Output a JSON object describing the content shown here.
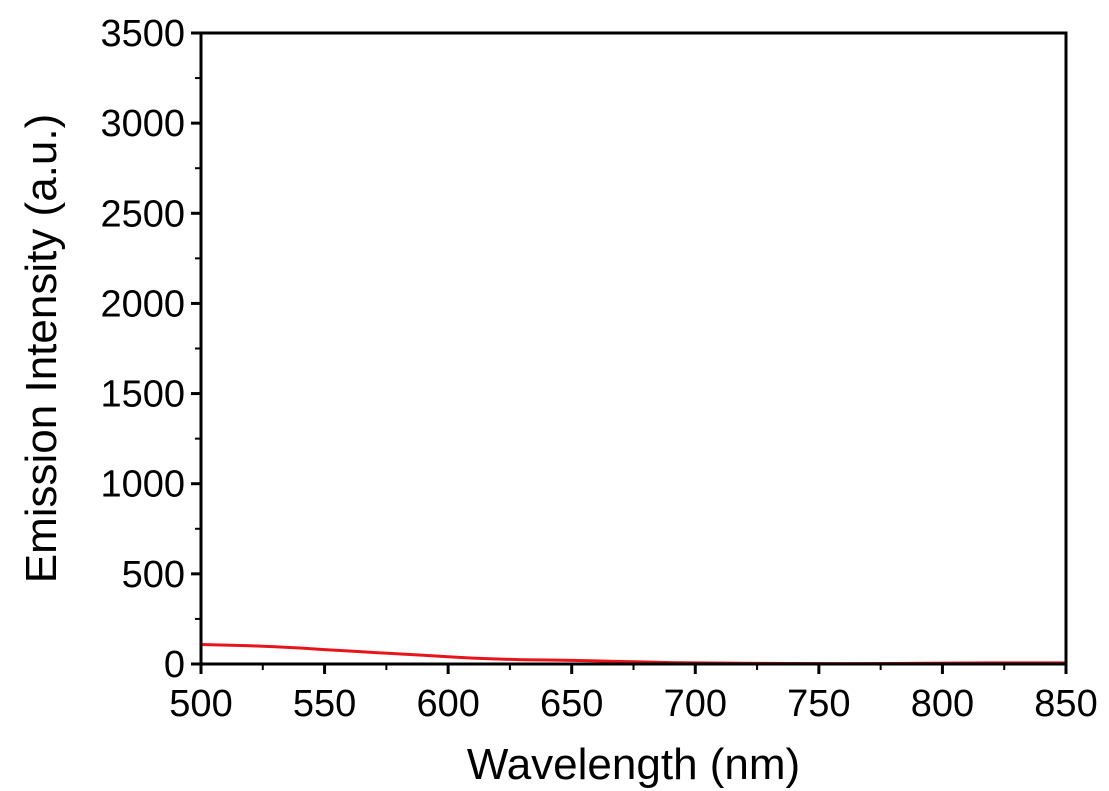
{
  "chart_data": {
    "type": "line",
    "title": "",
    "xlabel": "Wavelength (nm)",
    "ylabel": "Emission Intensity (a.u.)",
    "xlim": [
      500,
      850
    ],
    "ylim": [
      0,
      3500
    ],
    "x_ticks": [
      500,
      550,
      600,
      650,
      700,
      750,
      800,
      850
    ],
    "y_ticks": [
      0,
      500,
      1000,
      1500,
      2000,
      2500,
      3000,
      3500
    ],
    "x_tick_labels": [
      "500",
      "550",
      "600",
      "650",
      "700",
      "750",
      "800",
      "850"
    ],
    "y_tick_labels": [
      "0",
      "500",
      "1000",
      "1500",
      "2000",
      "2500",
      "3000",
      "3500"
    ],
    "grid": false,
    "legend": "none",
    "series": [
      {
        "color": "#e8141b",
        "x": [
          500,
          510,
          520,
          530,
          540,
          550,
          560,
          570,
          580,
          590,
          600,
          610,
          620,
          630,
          640,
          650,
          660,
          670,
          680,
          690,
          700,
          720,
          740,
          760,
          780,
          800,
          820,
          850
        ],
        "y": [
          108,
          105,
          101,
          96,
          89,
          80,
          72,
          64,
          56,
          48,
          40,
          33,
          28,
          24,
          22,
          20,
          17,
          14,
          11,
          8,
          6,
          4,
          3,
          2,
          3,
          5,
          6,
          6
        ]
      }
    ]
  }
}
